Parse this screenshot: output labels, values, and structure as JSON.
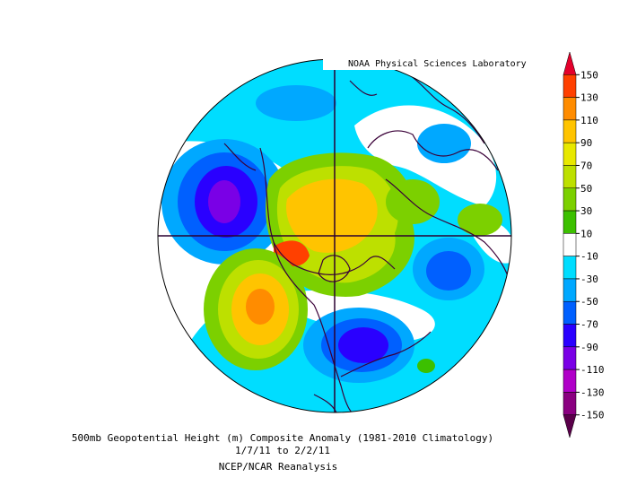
{
  "credit": "NOAA Physical Sciences Laboratory",
  "caption": {
    "line1": "500mb Geopotential Height (m) Composite Anomaly (1981-2010 Climatology)",
    "line2": "1/7/11   to 2/2/11",
    "line3": "NCEP/NCAR Reanalysis"
  },
  "colorbar": {
    "labels": [
      "150",
      "130",
      "110",
      "90",
      "70",
      "50",
      "30",
      "10",
      "-10",
      "-30",
      "-50",
      "-70",
      "-90",
      "-110",
      "-130",
      "-150"
    ],
    "colors": [
      "#e4002b",
      "#ff4000",
      "#ff8c00",
      "#ffc400",
      "#e8e800",
      "#bde000",
      "#7cd000",
      "#3cc000",
      "#ffffff",
      "#00ddff",
      "#00a8ff",
      "#0060ff",
      "#2a00ff",
      "#7a00e6",
      "#b000c8",
      "#8a0080",
      "#5a004a"
    ]
  },
  "colors": {
    "land_outline": "#3a0038",
    "grid": "#2a0030"
  }
}
